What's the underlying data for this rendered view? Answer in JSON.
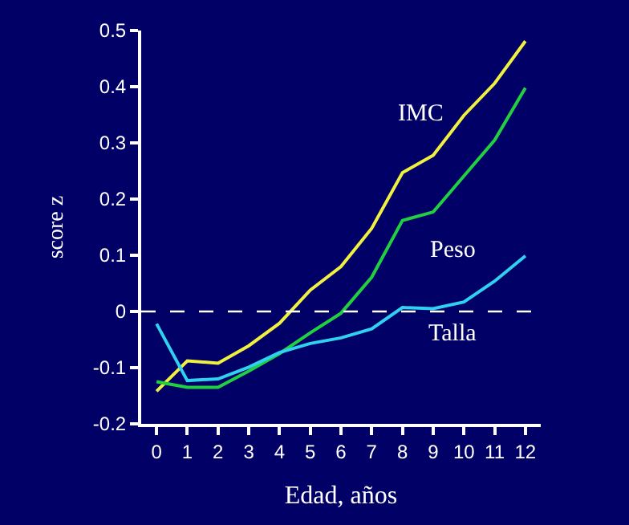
{
  "chart_data": {
    "type": "line",
    "xlabel": "Edad, años",
    "ylabel": "score z",
    "x": [
      0,
      1,
      2,
      3,
      4,
      5,
      6,
      7,
      8,
      9,
      10,
      11,
      12
    ],
    "xlim": [
      -0.5,
      12.5
    ],
    "xticks": [
      0,
      1,
      2,
      3,
      4,
      5,
      6,
      7,
      8,
      9,
      10,
      11,
      12
    ],
    "ylim": [
      -0.2,
      0.5
    ],
    "yticks": [
      -0.2,
      -0.1,
      0,
      0.1,
      0.2,
      0.3,
      0.4,
      0.5
    ],
    "grid": false,
    "legend": false,
    "marker": "none",
    "line_style": "solid",
    "series": [
      {
        "name": "IMC",
        "color": "#f0f040",
        "values": [
          -0.142,
          -0.088,
          -0.092,
          -0.061,
          -0.021,
          0.038,
          0.08,
          0.148,
          0.247,
          0.278,
          0.349,
          0.406,
          0.481
        ]
      },
      {
        "name": "Peso",
        "color": "#20d040",
        "values": [
          -0.125,
          -0.135,
          -0.135,
          -0.106,
          -0.075,
          -0.038,
          -0.003,
          0.061,
          0.162,
          0.177,
          0.241,
          0.305,
          0.398
        ]
      },
      {
        "name": "Talla",
        "color": "#30d0f0",
        "values": [
          -0.022,
          -0.123,
          -0.12,
          -0.099,
          -0.073,
          -0.057,
          -0.047,
          -0.031,
          0.007,
          0.005,
          0.017,
          0.054,
          0.099
        ]
      }
    ],
    "ref_lines": [
      {
        "axis": "y",
        "value": 0,
        "color": "#ffffff",
        "line_style": "dashed"
      }
    ]
  }
}
